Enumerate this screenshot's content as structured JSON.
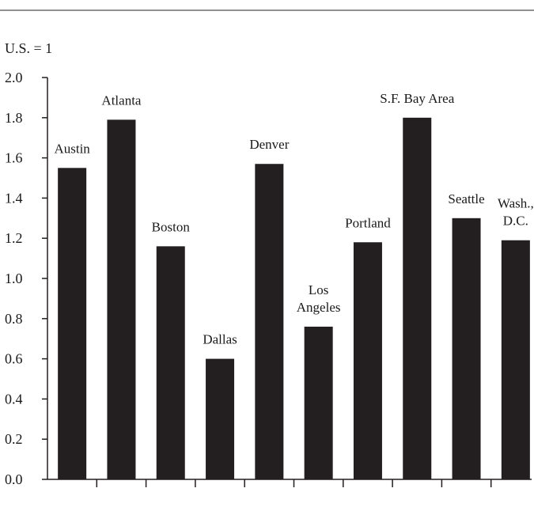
{
  "chart_data": {
    "type": "bar",
    "unit_label": "U.S. = 1",
    "categories": [
      {
        "label": [
          "Austin"
        ],
        "value": 1.55
      },
      {
        "label": [
          "Atlanta"
        ],
        "value": 1.79
      },
      {
        "label": [
          "Boston"
        ],
        "value": 1.16
      },
      {
        "label": [
          "Dallas"
        ],
        "value": 0.6
      },
      {
        "label": [
          "Denver"
        ],
        "value": 1.57
      },
      {
        "label": [
          "Los",
          "Angeles"
        ],
        "value": 0.76
      },
      {
        "label": [
          "Portland"
        ],
        "value": 1.18
      },
      {
        "label": [
          "S.F. Bay Area"
        ],
        "value": 1.8
      },
      {
        "label": [
          "Seattle"
        ],
        "value": 1.3
      },
      {
        "label": [
          "Wash.,",
          "D.C."
        ],
        "value": 1.19
      }
    ],
    "yticks": [
      "0.0",
      "0.2",
      "0.4",
      "0.6",
      "0.8",
      "1.0",
      "1.2",
      "1.4",
      "1.6",
      "1.8",
      "2.0"
    ],
    "ylim": [
      0,
      2.0
    ],
    "grid": false,
    "bar_color": "#231f20"
  }
}
